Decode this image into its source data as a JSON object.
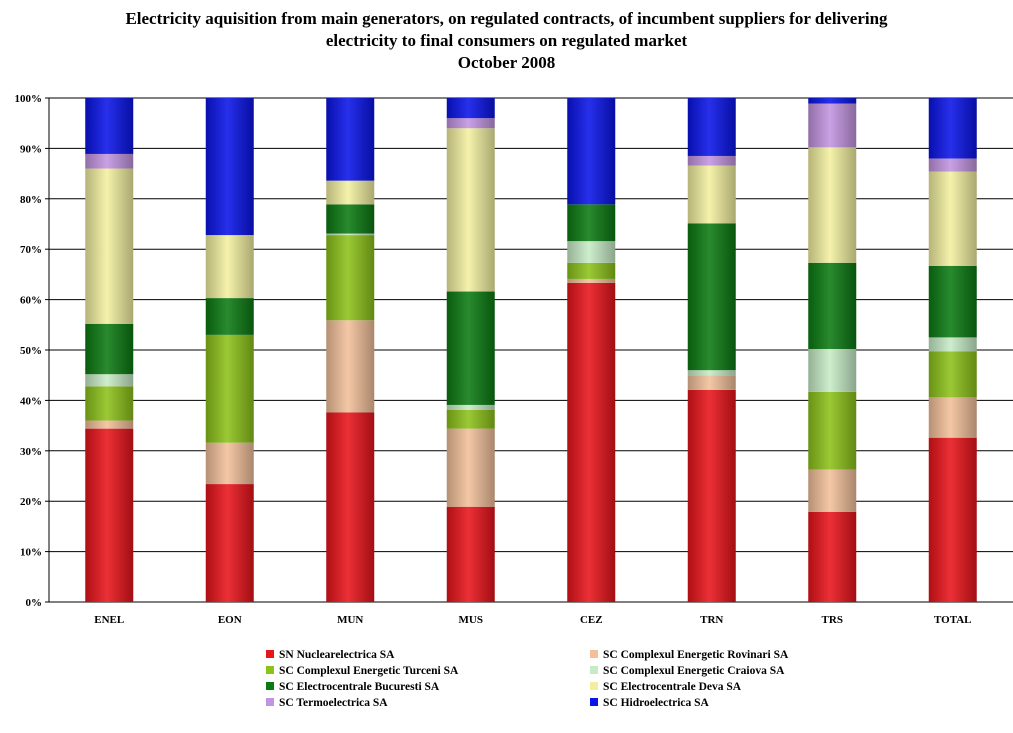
{
  "chart_data": {
    "type": "bar",
    "stacked": true,
    "title_lines": [
      "Electricity aquisition from main generators, on regulated contracts, of incumbent suppliers for delivering",
      "electricity to final consumers on regulated market",
      "October 2008"
    ],
    "categories": [
      "ENEL",
      "EON",
      "MUN",
      "MUS",
      "CEZ",
      "TRN",
      "TRS",
      "TOTAL"
    ],
    "y_ticks": [
      "0%",
      "10%",
      "20%",
      "30%",
      "40%",
      "50%",
      "60%",
      "70%",
      "80%",
      "90%",
      "100%"
    ],
    "ylim": [
      0,
      100
    ],
    "grid": true,
    "legend_position": "bottom",
    "series": [
      {
        "name": "SN Nuclearelectrica SA",
        "color": "#e8141b",
        "values": [
          34.4,
          23.4,
          37.6,
          18.9,
          63.3,
          42.1,
          17.9,
          32.6
        ]
      },
      {
        "name": "SC Complexul Energetic Rovinari SA",
        "color": "#f2c09a",
        "values": [
          1.6,
          8.2,
          18.3,
          15.5,
          0.8,
          2.9,
          8.4,
          8.0
        ]
      },
      {
        "name": "SC Complexul Energetic Turceni SA",
        "color": "#8cc21a",
        "values": [
          6.8,
          21.4,
          16.9,
          3.7,
          3.2,
          0.0,
          15.4,
          9.1
        ]
      },
      {
        "name": "SC Complexul Energetic Craiova SA",
        "color": "#c6ecc6",
        "values": [
          2.4,
          0.0,
          0.3,
          1.0,
          4.3,
          1.0,
          8.5,
          2.8
        ]
      },
      {
        "name": "SC Electrocentrale Bucuresti SA",
        "color": "#0c7a12",
        "values": [
          10.0,
          7.3,
          5.8,
          22.5,
          7.3,
          29.1,
          17.1,
          14.2
        ]
      },
      {
        "name": "SC Electrocentrale Deva SA",
        "color": "#f2f0a0",
        "values": [
          30.8,
          12.5,
          4.7,
          32.4,
          0.0,
          11.5,
          22.9,
          18.7
        ]
      },
      {
        "name": "SC Termoelectrica SA",
        "color": "#c294e0",
        "values": [
          2.9,
          0.0,
          0.0,
          2.0,
          0.0,
          1.9,
          8.7,
          2.6
        ]
      },
      {
        "name": "SC Hidroelectrica SA",
        "color": "#0a14e8",
        "values": [
          11.1,
          27.2,
          16.4,
          4.0,
          21.1,
          11.5,
          1.1,
          12.0
        ]
      }
    ]
  }
}
